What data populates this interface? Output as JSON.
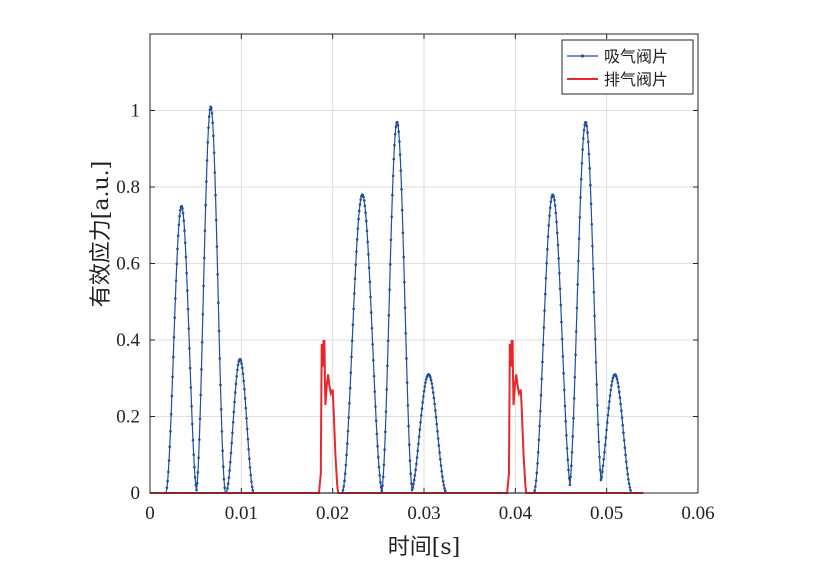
{
  "chart_data": {
    "type": "line",
    "title": "",
    "xlabel": "时间[s]",
    "ylabel": "有效应力[a.u.]",
    "xlim": [
      0,
      0.06
    ],
    "ylim": [
      0,
      1.2
    ],
    "xticks": [
      0,
      0.01,
      0.02,
      0.03,
      0.04,
      0.05,
      0.06
    ],
    "xtick_labels": [
      "0",
      "0.01",
      "0.02",
      "0.03",
      "0.04",
      "0.05",
      "0.06"
    ],
    "yticks": [
      0,
      0.2,
      0.4,
      0.6,
      0.8,
      1.0
    ],
    "ytick_labels": [
      "0",
      "0.2",
      "0.4",
      "0.6",
      "0.8",
      "1"
    ],
    "grid": true,
    "legend_position": "top-right",
    "series": [
      {
        "name": "吸气阀片",
        "color": "#1f4e9e",
        "marker": "dot",
        "pulses": [
          {
            "start": 0.0017,
            "end": 0.0052,
            "peak": 0.75
          },
          {
            "start": 0.005,
            "end": 0.0083,
            "peak": 1.01
          },
          {
            "start": 0.0083,
            "end": 0.0114,
            "peak": 0.35
          },
          {
            "start": 0.021,
            "end": 0.0255,
            "peak": 0.78
          },
          {
            "start": 0.0253,
            "end": 0.0288,
            "peak": 0.97
          },
          {
            "start": 0.0285,
            "end": 0.0325,
            "peak": 0.31
          },
          {
            "start": 0.042,
            "end": 0.0462,
            "peak": 0.78
          },
          {
            "start": 0.0458,
            "end": 0.0496,
            "peak": 0.97
          },
          {
            "start": 0.049,
            "end": 0.0528,
            "peak": 0.31
          }
        ],
        "x_end": 0.054
      },
      {
        "name": "排气阀片",
        "color": "#e8262c",
        "marker": "none",
        "burst_points": [
          [
            0.0185,
            0
          ],
          [
            0.0187,
            0.05
          ],
          [
            0.0188,
            0.39
          ],
          [
            0.0189,
            0.33
          ],
          [
            0.019,
            0.4
          ],
          [
            0.01905,
            0.36
          ],
          [
            0.0191,
            0.4
          ],
          [
            0.01915,
            0.3
          ],
          [
            0.0192,
            0.23
          ],
          [
            0.01935,
            0.28
          ],
          [
            0.0195,
            0.31
          ],
          [
            0.01965,
            0.28
          ],
          [
            0.0198,
            0.26
          ],
          [
            0.02,
            0.27
          ],
          [
            0.0201,
            0.22
          ],
          [
            0.0203,
            0.1
          ],
          [
            0.0205,
            0.02
          ],
          [
            0.0206,
            0
          ]
        ],
        "burst_offsets": [
          0,
          0.0206
        ],
        "x_end": 0.054
      }
    ]
  }
}
